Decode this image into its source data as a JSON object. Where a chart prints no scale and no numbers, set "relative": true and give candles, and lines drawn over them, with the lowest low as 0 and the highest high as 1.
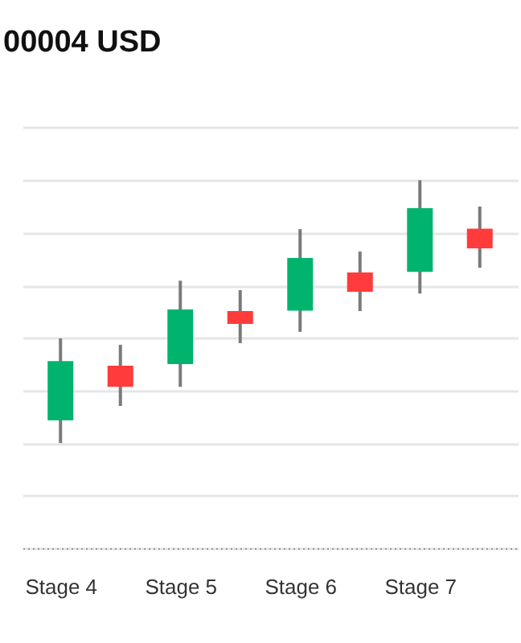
{
  "chart_data": {
    "type": "candlestick",
    "title": "00004 USD",
    "relative": true,
    "grid": "y",
    "tick_labels": "x",
    "categories": [
      "Stage 4",
      null,
      "Stage 5",
      null,
      "Stage 6",
      null,
      "Stage 7",
      null
    ],
    "ohlc": [
      [
        0.086,
        0.398,
        0,
        0.312
      ],
      [
        0.294,
        0.374,
        0.141,
        0.214
      ],
      [
        0.3,
        0.618,
        0.214,
        0.508
      ],
      [
        0.502,
        0.582,
        0.38,
        0.453
      ],
      [
        0.504,
        0.814,
        0.423,
        0.704
      ],
      [
        0.649,
        0.729,
        0.502,
        0.576
      ],
      [
        0.651,
        1,
        0.569,
        0.894
      ],
      [
        0.816,
        0.9,
        0.667,
        0.741
      ]
    ],
    "colors": [
      "#00b46e",
      "#ff3b3b",
      "#00b46e",
      "#ff3b3b",
      "#00b46e",
      "#ff3b3b",
      "#00b46e",
      "#ff3b3b"
    ]
  }
}
